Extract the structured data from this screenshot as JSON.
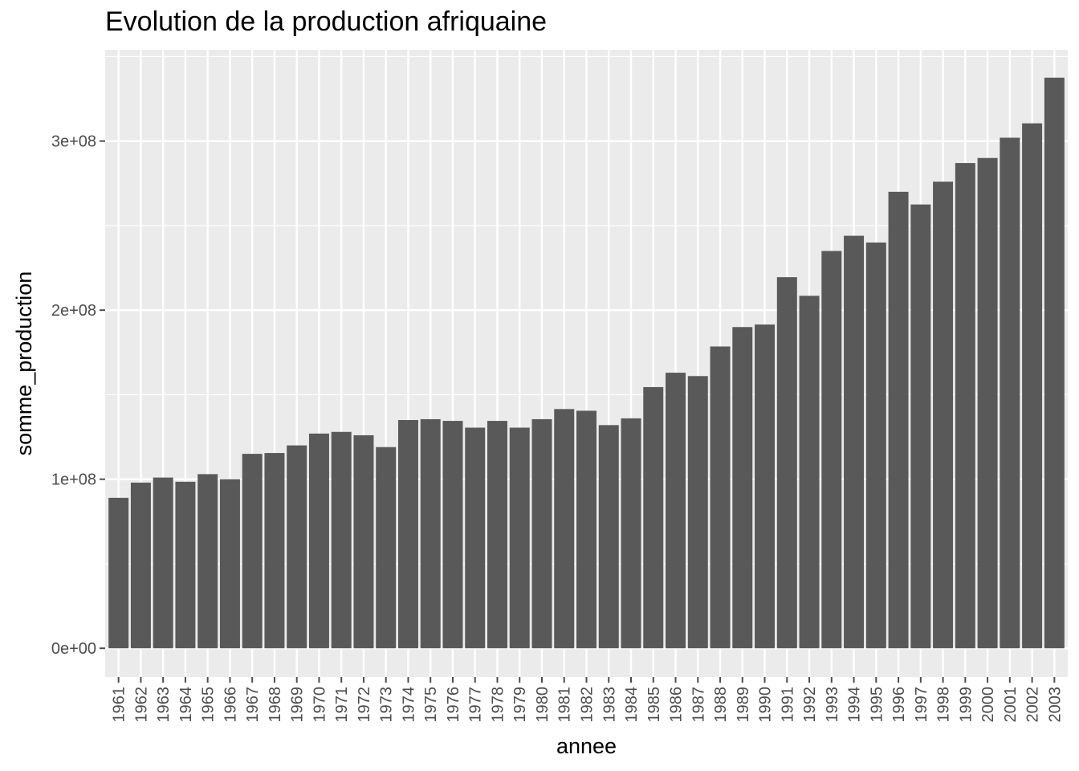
{
  "chart_data": {
    "type": "bar",
    "title": "Evolution de la production afriquaine",
    "xlabel": "annee",
    "ylabel": "somme_production",
    "categories": [
      "1961",
      "1962",
      "1963",
      "1964",
      "1965",
      "1966",
      "1967",
      "1968",
      "1969",
      "1970",
      "1971",
      "1972",
      "1973",
      "1974",
      "1975",
      "1976",
      "1977",
      "1978",
      "1979",
      "1980",
      "1981",
      "1982",
      "1983",
      "1984",
      "1985",
      "1986",
      "1987",
      "1988",
      "1989",
      "1990",
      "1991",
      "1992",
      "1993",
      "1994",
      "1995",
      "1996",
      "1997",
      "1998",
      "1999",
      "2000",
      "2001",
      "2002",
      "2003"
    ],
    "values": [
      89000000,
      98000000,
      101000000,
      98500000,
      103000000,
      100000000,
      115000000,
      115500000,
      120000000,
      127000000,
      128000000,
      126000000,
      119000000,
      135000000,
      135500000,
      134500000,
      130500000,
      134500000,
      130500000,
      135500000,
      141500000,
      140500000,
      132000000,
      136000000,
      154500000,
      163000000,
      161000000,
      178500000,
      190000000,
      191500000,
      219500000,
      208500000,
      235000000,
      244000000,
      240000000,
      270000000,
      262500000,
      276000000,
      287000000,
      290000000,
      302000000,
      310500000,
      337500000
    ],
    "y_ticks": [
      {
        "value": 0,
        "label": "0e+00"
      },
      {
        "value": 100000000,
        "label": "1e+08"
      },
      {
        "value": 200000000,
        "label": "2e+08"
      },
      {
        "value": 300000000,
        "label": "3e+08"
      }
    ],
    "ylim": [
      -17000000,
      354000000
    ],
    "grid": true,
    "colors": {
      "bar": "#595959",
      "panel": "#ebebeb",
      "grid": "#ffffff",
      "tick": "#4d4d4d"
    }
  }
}
